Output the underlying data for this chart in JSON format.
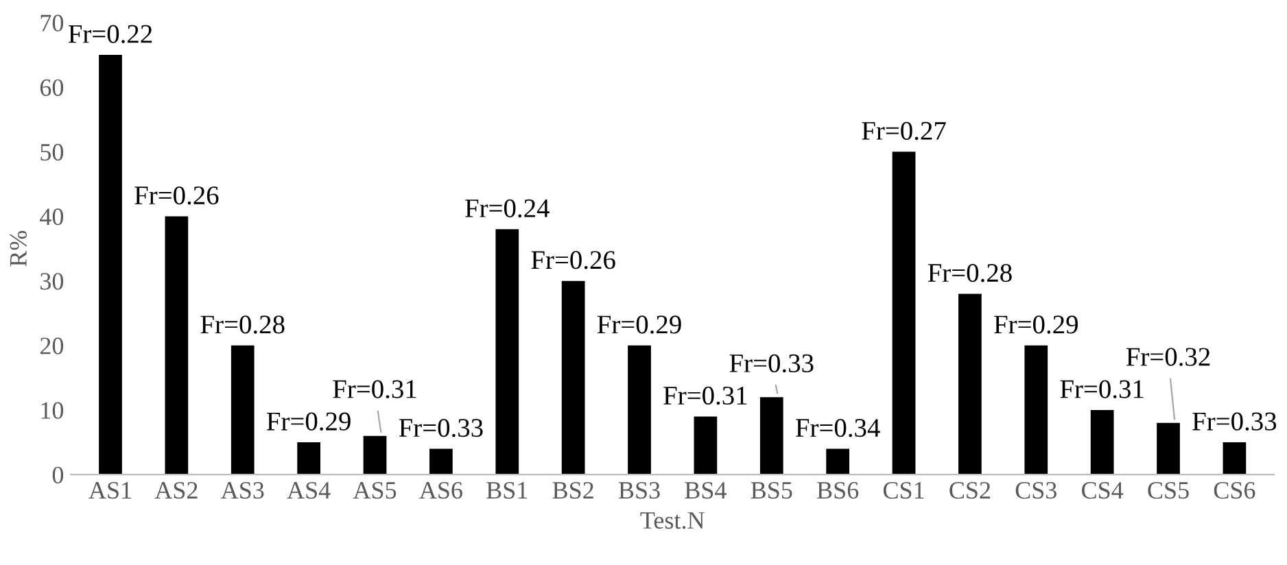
{
  "chart_data": {
    "type": "bar",
    "xlabel": "Test.N",
    "ylabel": "R%",
    "categories": [
      "AS1",
      "AS2",
      "AS3",
      "AS4",
      "AS5",
      "AS6",
      "BS1",
      "BS2",
      "BS3",
      "BS4",
      "BS5",
      "BS6",
      "CS1",
      "CS2",
      "CS3",
      "CS4",
      "CS5",
      "CS6"
    ],
    "values": [
      65,
      40,
      20,
      5,
      6,
      4,
      38,
      30,
      20,
      9,
      12,
      4,
      50,
      28,
      20,
      10,
      8,
      5
    ],
    "color": "#000000",
    "ylim": [
      0,
      70
    ],
    "yticks": [
      0,
      10,
      20,
      30,
      40,
      50,
      60,
      70
    ],
    "grid": false,
    "legend": false,
    "annotations": [
      {
        "text": "Fr=0.22",
        "x": "AS1",
        "y": 65
      },
      {
        "text": "Fr=0.26",
        "x": "AS2",
        "y": 40
      },
      {
        "text": "Fr=0.28",
        "x": "AS3",
        "y": 20
      },
      {
        "text": "Fr=0.29",
        "x": "AS4",
        "y": 5
      },
      {
        "text": "Fr=0.31",
        "x": "AS5",
        "y": 6
      },
      {
        "text": "Fr=0.33",
        "x": "AS6",
        "y": 4
      },
      {
        "text": "Fr=0.24",
        "x": "BS1",
        "y": 38
      },
      {
        "text": "Fr=0.26",
        "x": "BS2",
        "y": 30
      },
      {
        "text": "Fr=0.29",
        "x": "BS3",
        "y": 20
      },
      {
        "text": "Fr=0.31",
        "x": "BS4",
        "y": 9
      },
      {
        "text": "Fr=0.33",
        "x": "BS5",
        "y": 12
      },
      {
        "text": "Fr=0.34",
        "x": "BS6",
        "y": 4
      },
      {
        "text": "Fr=0.27",
        "x": "CS1",
        "y": 50
      },
      {
        "text": "Fr=0.28",
        "x": "CS2",
        "y": 28
      },
      {
        "text": "Fr=0.29",
        "x": "CS3",
        "y": 20
      },
      {
        "text": "Fr=0.31",
        "x": "CS4",
        "y": 10
      },
      {
        "text": "Fr=0.32",
        "x": "CS5",
        "y": 8
      },
      {
        "text": "Fr=0.33",
        "x": "CS6",
        "y": 5
      }
    ]
  }
}
